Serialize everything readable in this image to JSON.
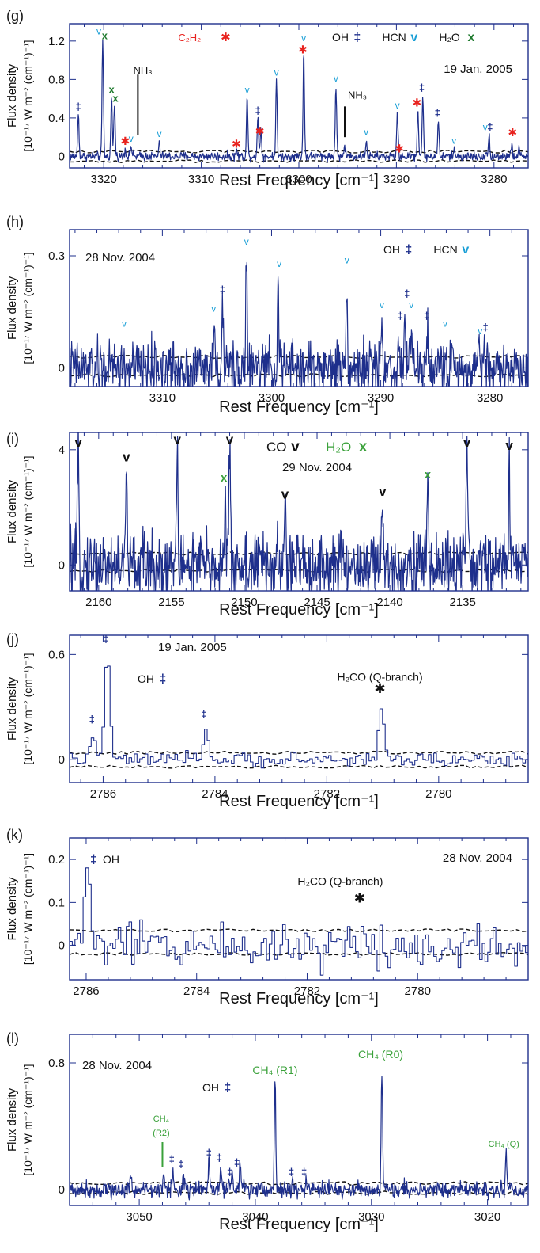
{
  "colors": {
    "frame": "#1e2f8c",
    "trace": "#1e2f8c",
    "hcn": "#1a9fd6",
    "c2h2": "#e8231f",
    "h2o_dark": "#1f7a2e",
    "green": "#3aa13a",
    "black": "#111111"
  },
  "chart_data": [
    {
      "panel_label": "(g)",
      "type": "line",
      "date": "19 Jan. 2005",
      "ylabel_line1": "Flux density",
      "ylabel_line2": "[10⁻¹⁷ W m⁻² (cm⁻¹)⁻¹]",
      "xlabel": "Rest Frequency [cm⁻¹]",
      "xlim": [
        3323.5,
        3276.5
      ],
      "ylim": [
        -0.12,
        1.38
      ],
      "xticks": [
        3320,
        3310,
        3300,
        3290,
        3280
      ],
      "yticks": [
        0,
        0.4,
        0.8,
        1.2
      ],
      "ytick_labels": [
        "0",
        "0.4",
        "0.8",
        "1.2"
      ],
      "noise": 0.035,
      "sigma": 0.07,
      "peaks": [
        [
          3322.6,
          0.45
        ],
        [
          3320.1,
          1.22
        ],
        [
          3319.2,
          0.62
        ],
        [
          3318.9,
          0.55
        ],
        [
          3317.8,
          0.08
        ],
        [
          3317.2,
          0.12
        ],
        [
          3314.3,
          0.14
        ],
        [
          3306.4,
          0.07
        ],
        [
          3305.3,
          0.62
        ],
        [
          3304.2,
          0.4
        ],
        [
          3303.9,
          0.3
        ],
        [
          3302.3,
          0.8
        ],
        [
          3299.5,
          1.1
        ],
        [
          3296.2,
          0.75
        ],
        [
          3295.3,
          0.12
        ],
        [
          3293.1,
          0.16
        ],
        [
          3289.9,
          0.46
        ],
        [
          3287.8,
          0.5
        ],
        [
          3287.3,
          0.62
        ],
        [
          3285.7,
          0.38
        ],
        [
          3284.1,
          0.07
        ],
        [
          3280.5,
          0.24
        ],
        [
          3278.2,
          0.12
        ],
        [
          3277.4,
          0.08
        ]
      ],
      "band": [
        -0.05,
        0.05
      ],
      "legend": [
        {
          "label": "OH",
          "sym": "‡",
          "color_key": "trace"
        },
        {
          "label": "HCN",
          "sym": "v",
          "color_key": "hcn"
        },
        {
          "label": "H₂O",
          "sym": "x",
          "color_key": "h2o_dark"
        }
      ],
      "labels": [
        {
          "text": "C₂H₂",
          "x": 3311.2,
          "y": 1.2,
          "color_key": "c2h2",
          "size": 13
        },
        {
          "text": "✱",
          "x": 3307.5,
          "y": 1.2,
          "color_key": "c2h2",
          "size": 15
        },
        {
          "text": "NH₃",
          "x": 3316.0,
          "y": 0.86,
          "color_key": "black",
          "size": 13
        },
        {
          "text": "NH₃",
          "x": 3294.0,
          "y": 0.6,
          "color_key": "black",
          "size": 13
        }
      ],
      "lines": [
        {
          "x": 3316.5,
          "y1": 0.85,
          "y2": 0.22,
          "color_key": "black"
        },
        {
          "x": 3295.3,
          "y1": 0.52,
          "y2": 0.2,
          "color_key": "black"
        }
      ],
      "markers": [
        {
          "sym": "‡",
          "x": 3322.6,
          "y": 0.48,
          "color_key": "trace"
        },
        {
          "sym": "v",
          "x": 3320.5,
          "y": 1.27,
          "color_key": "hcn"
        },
        {
          "sym": "x",
          "x": 3319.9,
          "y": 1.22,
          "color_key": "h2o_dark"
        },
        {
          "sym": "x",
          "x": 3319.2,
          "y": 0.66,
          "color_key": "h2o_dark"
        },
        {
          "sym": "x",
          "x": 3318.8,
          "y": 0.57,
          "color_key": "h2o_dark"
        },
        {
          "sym": "v",
          "x": 3317.2,
          "y": 0.15,
          "color_key": "hcn"
        },
        {
          "sym": "✱",
          "x": 3317.8,
          "y": 0.12,
          "color_key": "c2h2"
        },
        {
          "sym": "v",
          "x": 3314.3,
          "y": 0.2,
          "color_key": "hcn"
        },
        {
          "sym": "✱",
          "x": 3306.4,
          "y": 0.09,
          "color_key": "c2h2"
        },
        {
          "sym": "v",
          "x": 3305.3,
          "y": 0.66,
          "color_key": "hcn"
        },
        {
          "sym": "‡",
          "x": 3304.2,
          "y": 0.44,
          "color_key": "trace"
        },
        {
          "sym": "✱",
          "x": 3304.0,
          "y": 0.22,
          "color_key": "c2h2"
        },
        {
          "sym": "v",
          "x": 3302.3,
          "y": 0.84,
          "color_key": "hcn"
        },
        {
          "sym": "✱",
          "x": 3299.6,
          "y": 1.07,
          "color_key": "c2h2"
        },
        {
          "sym": "v",
          "x": 3299.5,
          "y": 1.2,
          "color_key": "hcn"
        },
        {
          "sym": "v",
          "x": 3296.2,
          "y": 0.78,
          "color_key": "hcn"
        },
        {
          "sym": "v",
          "x": 3293.1,
          "y": 0.22,
          "color_key": "hcn"
        },
        {
          "sym": "v",
          "x": 3289.9,
          "y": 0.5,
          "color_key": "hcn"
        },
        {
          "sym": "✱",
          "x": 3289.7,
          "y": 0.04,
          "color_key": "c2h2"
        },
        {
          "sym": "✱",
          "x": 3287.9,
          "y": 0.52,
          "color_key": "c2h2"
        },
        {
          "sym": "‡",
          "x": 3287.4,
          "y": 0.68,
          "color_key": "trace"
        },
        {
          "sym": "‡",
          "x": 3285.8,
          "y": 0.42,
          "color_key": "trace"
        },
        {
          "sym": "v",
          "x": 3284.1,
          "y": 0.13,
          "color_key": "hcn"
        },
        {
          "sym": "v",
          "x": 3280.9,
          "y": 0.27,
          "color_key": "hcn"
        },
        {
          "sym": "‡",
          "x": 3280.4,
          "y": 0.27,
          "color_key": "trace"
        },
        {
          "sym": "✱",
          "x": 3278.1,
          "y": 0.21,
          "color_key": "c2h2"
        }
      ]
    },
    {
      "panel_label": "(h)",
      "type": "line",
      "date": "28 Nov. 2004",
      "ylabel_line1": "Flux density",
      "ylabel_line2": "[10⁻¹⁷ W m⁻² (cm⁻¹)⁻¹]",
      "xlabel": "Rest Frequency [cm⁻¹]",
      "xlim": [
        3318.5,
        3276.5
      ],
      "ylim": [
        -0.05,
        0.37
      ],
      "xticks": [
        3310,
        3300,
        3290,
        3280
      ],
      "yticks": [
        0,
        0.3
      ],
      "ytick_labels": [
        "0",
        "0.3"
      ],
      "noise": 0.055,
      "sigma": 0.06,
      "peaks": [
        [
          3305.3,
          0.13
        ],
        [
          3304.5,
          0.16
        ],
        [
          3302.3,
          0.3
        ],
        [
          3299.4,
          0.24
        ],
        [
          3293.1,
          0.25
        ],
        [
          3289.9,
          0.14
        ],
        [
          3287.8,
          0.16
        ],
        [
          3287.3,
          0.13
        ],
        [
          3285.7,
          0.1
        ],
        [
          3284.1,
          0.05
        ],
        [
          3281.0,
          0.08
        ],
        [
          3280.5,
          0.07
        ]
      ],
      "band": [
        -0.02,
        0.03
      ],
      "legend": [
        {
          "label": "OH",
          "sym": "‡",
          "color_key": "trace"
        },
        {
          "label": "HCN",
          "sym": "v",
          "color_key": "hcn"
        }
      ],
      "labels": [],
      "lines": [],
      "markers": [
        {
          "sym": "v",
          "x": 3313.5,
          "y": 0.11,
          "color_key": "hcn"
        },
        {
          "sym": "v",
          "x": 3305.3,
          "y": 0.15,
          "color_key": "hcn"
        },
        {
          "sym": "‡",
          "x": 3304.5,
          "y": 0.2,
          "color_key": "trace"
        },
        {
          "sym": "v",
          "x": 3302.3,
          "y": 0.33,
          "color_key": "hcn"
        },
        {
          "sym": "v",
          "x": 3299.3,
          "y": 0.27,
          "color_key": "hcn"
        },
        {
          "sym": "v",
          "x": 3293.1,
          "y": 0.28,
          "color_key": "hcn"
        },
        {
          "sym": "v",
          "x": 3289.9,
          "y": 0.16,
          "color_key": "hcn"
        },
        {
          "sym": "‡",
          "x": 3288.2,
          "y": 0.13,
          "color_key": "trace"
        },
        {
          "sym": "‡",
          "x": 3287.6,
          "y": 0.19,
          "color_key": "trace"
        },
        {
          "sym": "v",
          "x": 3287.2,
          "y": 0.16,
          "color_key": "hcn"
        },
        {
          "sym": "‡",
          "x": 3285.8,
          "y": 0.13,
          "color_key": "trace"
        },
        {
          "sym": "v",
          "x": 3284.1,
          "y": 0.11,
          "color_key": "hcn"
        },
        {
          "sym": "v",
          "x": 3280.9,
          "y": 0.09,
          "color_key": "hcn"
        },
        {
          "sym": "‡",
          "x": 3280.4,
          "y": 0.1,
          "color_key": "trace"
        }
      ]
    },
    {
      "panel_label": "(i)",
      "type": "line",
      "date": "29 Nov. 2004",
      "ylabel_line1": "Flux density",
      "ylabel_line2": "[10⁻¹⁷ W m⁻² (cm⁻¹)⁻¹]",
      "xlabel": "Rest Frequency [cm⁻¹]",
      "xlim": [
        2162.0,
        2130.5
      ],
      "ylim": [
        -0.9,
        4.6
      ],
      "xticks": [
        2160,
        2155,
        2150,
        2145,
        2140,
        2135
      ],
      "yticks": [
        0,
        4
      ],
      "ytick_labels": [
        "0",
        "4"
      ],
      "noise": 0.9,
      "sigma": 0.05,
      "peaks": [
        [
          2161.4,
          3.8
        ],
        [
          2158.1,
          3.3
        ],
        [
          2154.6,
          3.9
        ],
        [
          2151.3,
          2.6
        ],
        [
          2151.0,
          3.9
        ],
        [
          2147.2,
          2.0
        ],
        [
          2140.5,
          1.8
        ],
        [
          2137.4,
          2.7
        ],
        [
          2134.7,
          3.8
        ],
        [
          2131.8,
          3.7
        ]
      ],
      "band": [
        -0.2,
        0.4
      ],
      "legend": [
        {
          "label": "CO",
          "sym": "v",
          "color_key": "black"
        },
        {
          "label": "H₂O",
          "sym": "x",
          "color_key": "green"
        }
      ],
      "labels": [],
      "lines": [],
      "markers": [
        {
          "sym": "v",
          "x": 2161.4,
          "y": 4.1,
          "color_key": "black"
        },
        {
          "sym": "v",
          "x": 2158.1,
          "y": 3.6,
          "color_key": "black"
        },
        {
          "sym": "v",
          "x": 2154.6,
          "y": 4.2,
          "color_key": "black"
        },
        {
          "sym": "x",
          "x": 2151.4,
          "y": 2.9,
          "color_key": "green"
        },
        {
          "sym": "v",
          "x": 2151.0,
          "y": 4.2,
          "color_key": "black"
        },
        {
          "sym": "v",
          "x": 2147.2,
          "y": 2.3,
          "color_key": "black"
        },
        {
          "sym": "v",
          "x": 2140.5,
          "y": 2.4,
          "color_key": "black"
        },
        {
          "sym": "x",
          "x": 2137.4,
          "y": 3.0,
          "color_key": "green"
        },
        {
          "sym": "v",
          "x": 2134.7,
          "y": 4.1,
          "color_key": "black"
        },
        {
          "sym": "v",
          "x": 2131.8,
          "y": 4.0,
          "color_key": "black"
        }
      ]
    },
    {
      "panel_label": "(j)",
      "type": "line",
      "date": "19 Jan. 2005",
      "ylabel_line1": "Flux density",
      "ylabel_line2": "[10⁻¹⁷ W m⁻² (cm⁻¹)⁻¹]",
      "xlabel": "Rest Frequency [cm⁻¹]",
      "xlim": [
        2786.6,
        2778.4
      ],
      "ylim": [
        -0.13,
        0.71
      ],
      "xticks": [
        2786,
        2784,
        2782,
        2780
      ],
      "yticks": [
        0,
        0.6
      ],
      "ytick_labels": [
        "0",
        "0.6"
      ],
      "step": true,
      "noise": 0.03,
      "sigma": 0.045,
      "peaks": [
        [
          2786.2,
          0.15
        ],
        [
          2785.95,
          0.62
        ],
        [
          2784.2,
          0.18
        ],
        [
          2781.05,
          0.33
        ]
      ],
      "band": [
        -0.04,
        0.04
      ],
      "legend": [
        {
          "label": "OH",
          "sym": "‡",
          "color_key": "trace"
        }
      ],
      "labels": [
        {
          "text": "H₂CO (Q-branch)",
          "x": 2781.05,
          "y": 0.45,
          "color_key": "black",
          "size": 14
        }
      ],
      "lines": [],
      "markers": [
        {
          "sym": "‡",
          "x": 2786.2,
          "y": 0.21,
          "color_key": "trace"
        },
        {
          "sym": "‡",
          "x": 2785.95,
          "y": 0.67,
          "color_key": "trace"
        },
        {
          "sym": "‡",
          "x": 2784.2,
          "y": 0.24,
          "color_key": "trace"
        },
        {
          "sym": "✱",
          "x": 2781.05,
          "y": 0.38,
          "color_key": "black"
        }
      ]
    },
    {
      "panel_label": "(k)",
      "type": "line",
      "date": "28 Nov. 2004",
      "ylabel_line1": "Flux density",
      "ylabel_line2": "[10⁻¹⁷ W m⁻² (cm⁻¹)⁻¹]",
      "xlabel": "Rest Frequency [cm⁻¹]",
      "xlim": [
        2786.3,
        2778.0
      ],
      "ylim": [
        -0.08,
        0.25
      ],
      "xticks": [
        2786,
        2784,
        2782,
        2780
      ],
      "yticks": [
        0,
        0.1,
        0.2
      ],
      "ytick_labels": [
        "0",
        "0.1",
        "0.2"
      ],
      "step": true,
      "noise": 0.04,
      "sigma": 0.05,
      "peaks": [
        [
          2786.0,
          0.2
        ],
        [
          2781.05,
          0.02
        ]
      ],
      "band": [
        -0.02,
        0.035
      ],
      "legend": [
        {
          "label": "OH",
          "sym": "‡",
          "color_key": "trace",
          "first": true
        }
      ],
      "labels": [
        {
          "text": "H₂CO (Q-branch)",
          "x": 2781.4,
          "y": 0.14,
          "color_key": "black",
          "size": 14
        }
      ],
      "lines": [],
      "markers": [
        {
          "sym": "✱",
          "x": 2781.05,
          "y": 0.1,
          "color_key": "black"
        }
      ]
    },
    {
      "panel_label": "(l)",
      "type": "line",
      "date": "28 Nov. 2004",
      "ylabel_line1": "Flux density",
      "ylabel_line2": "[10⁻¹⁷ W m⁻² (cm⁻¹)⁻¹]",
      "xlabel": "Rest Frequency [cm⁻¹]",
      "xlim": [
        3056.0,
        3016.5
      ],
      "ylim": [
        -0.1,
        0.98
      ],
      "xticks": [
        3050,
        3040,
        3030,
        3020
      ],
      "yticks": [
        0,
        0.8
      ],
      "ytick_labels": [
        "0",
        "0.8"
      ],
      "noise": 0.04,
      "sigma": 0.06,
      "peaks": [
        [
          3050.7,
          0.12
        ],
        [
          3047.9,
          0.13
        ],
        [
          3047.1,
          0.12
        ],
        [
          3046.2,
          0.1
        ],
        [
          3044.0,
          0.18
        ],
        [
          3043.0,
          0.15
        ],
        [
          3042.0,
          0.12
        ],
        [
          3041.3,
          0.18
        ],
        [
          3038.3,
          0.69
        ],
        [
          3036.8,
          0.06
        ],
        [
          3035.6,
          0.05
        ],
        [
          3029.1,
          0.78
        ],
        [
          3018.4,
          0.22
        ]
      ],
      "band": [
        -0.02,
        0.04
      ],
      "legend": [
        {
          "label": "OH",
          "sym": "‡",
          "color_key": "trace"
        }
      ],
      "labels": [
        {
          "text": "CH₄ (R1)",
          "x": 3038.3,
          "y": 0.73,
          "color_key": "green",
          "size": 14
        },
        {
          "text": "CH₄ (R0)",
          "x": 3029.2,
          "y": 0.83,
          "color_key": "green",
          "size": 14
        },
        {
          "text": "CH₄ (Q)",
          "x": 3018.6,
          "y": 0.27,
          "color_key": "green",
          "size": 11
        },
        {
          "text": "CH₄",
          "x": 3048.1,
          "y": 0.43,
          "color_key": "green",
          "size": 11
        },
        {
          "text": "(R2)",
          "x": 3048.1,
          "y": 0.34,
          "color_key": "green",
          "size": 11
        }
      ],
      "lines": [
        {
          "x": 3048.0,
          "y1": 0.3,
          "y2": 0.14,
          "color_key": "green"
        }
      ],
      "markers": [
        {
          "sym": "‡",
          "x": 3047.2,
          "y": 0.17,
          "color_key": "trace"
        },
        {
          "sym": "‡",
          "x": 3046.4,
          "y": 0.14,
          "color_key": "trace"
        },
        {
          "sym": "‡",
          "x": 3044.0,
          "y": 0.21,
          "color_key": "trace"
        },
        {
          "sym": "‡",
          "x": 3043.1,
          "y": 0.18,
          "color_key": "trace"
        },
        {
          "sym": "‡",
          "x": 3042.2,
          "y": 0.09,
          "color_key": "trace"
        },
        {
          "sym": "‡",
          "x": 3041.6,
          "y": 0.15,
          "color_key": "trace"
        },
        {
          "sym": "‡",
          "x": 3036.9,
          "y": 0.09,
          "color_key": "trace"
        },
        {
          "sym": "‡",
          "x": 3035.8,
          "y": 0.09,
          "color_key": "trace"
        }
      ]
    }
  ]
}
